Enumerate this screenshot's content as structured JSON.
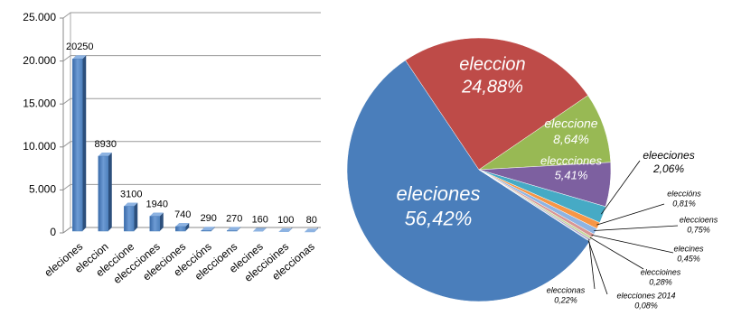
{
  "chart_data": [
    {
      "type": "bar3d",
      "categories": [
        "eleciones",
        "eleccion",
        "eleccione",
        "eleccciones",
        "eleeciones",
        "eleccións",
        "eleccioens",
        "elecines",
        "eleccioines",
        "eleccionas"
      ],
      "values": [
        20250,
        8930,
        3100,
        1940,
        740,
        290,
        270,
        160,
        100,
        80
      ],
      "color": "#4f81bd",
      "ylim": [
        0,
        25000
      ],
      "yticks": [
        0,
        {
          "value": 5000,
          "label": "5.000"
        },
        {
          "value": 10000,
          "label": "10.000"
        },
        {
          "value": 15000,
          "label": "15.000"
        },
        {
          "value": 20000,
          "label": "20.000"
        },
        {
          "value": 25000,
          "label": "25.000"
        }
      ],
      "grid": true
    },
    {
      "type": "pie",
      "categories": [
        "eleciones",
        "eleccion",
        "eleccione",
        "eleccciones",
        "eleeciones",
        "eleccións",
        "eleccioens",
        "elecines",
        "eleccioines",
        "eleccionas",
        "elecciones 2014"
      ],
      "values": [
        56.42,
        24.88,
        8.64,
        5.41,
        2.06,
        0.81,
        0.75,
        0.45,
        0.28,
        0.22,
        0.08
      ],
      "value_labels": [
        "56,42%",
        "24,88%",
        "8,64%",
        "5,41%",
        "2,06%",
        "0,81%",
        "0,75%",
        "0,45%",
        "0,28%",
        "0,22%",
        "0,08%"
      ],
      "colors": [
        "#4a7ebb",
        "#be4b48",
        "#98b954",
        "#7d60a0",
        "#46aac5",
        "#f79646",
        "#8eb4e3",
        "#d99694",
        "#c3d69b",
        "#b3a2c7",
        "#93cddd"
      ]
    }
  ]
}
